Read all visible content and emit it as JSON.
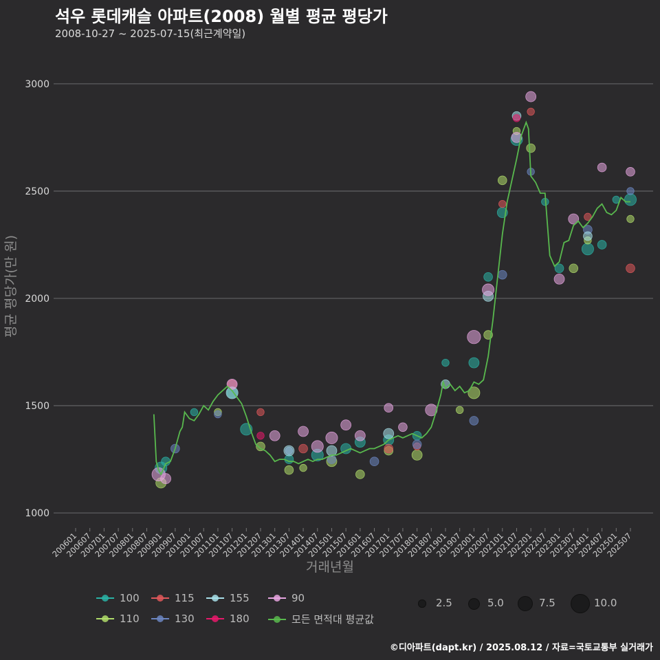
{
  "header": {
    "title": "석우 롯데캐슬 아파트(2008) 월별 평균 평당가",
    "subtitle": "2008-10-27 ~ 2025-07-15(최근계약일)"
  },
  "footer": {
    "credit": "©디아파트(dapt.kr) / 2025.08.12 / 자료=국토교통부 실거래가"
  },
  "chart_data": {
    "type": "scatter",
    "title": "석우 롯데캐슬 아파트(2008) 월별 평균 평당가",
    "xlabel": "거래년월",
    "ylabel": "평균 평당가(만 원)",
    "ylim": [
      1000,
      3100
    ],
    "yticks": [
      1000,
      1500,
      2000,
      2500,
      3000
    ],
    "xticks": [
      "200601",
      "200607",
      "200701",
      "200707",
      "200801",
      "200807",
      "200901",
      "200907",
      "201001",
      "201007",
      "201101",
      "201107",
      "201201",
      "201207",
      "201301",
      "201307",
      "201401",
      "201407",
      "201501",
      "201507",
      "201601",
      "201607",
      "201701",
      "201707",
      "201801",
      "201807",
      "201901",
      "201907",
      "202001",
      "202007",
      "202101",
      "202107",
      "202201",
      "202207",
      "202301",
      "202307",
      "202401",
      "202407",
      "202501",
      "202507"
    ],
    "grid": true,
    "legend": {
      "areas": [
        {
          "name": "100",
          "color": "#2ab3a6"
        },
        {
          "name": "115",
          "color": "#e0585b"
        },
        {
          "name": "155",
          "color": "#a8e0ea"
        },
        {
          "name": "90",
          "color": "#e7a5e1"
        },
        {
          "name": "110",
          "color": "#b0dc6a"
        },
        {
          "name": "130",
          "color": "#6c86c2"
        },
        {
          "name": "180",
          "color": "#e7196b"
        },
        {
          "name": "모든 면적대 평균값",
          "color": "#59b94e"
        }
      ],
      "sizes": [
        {
          "label": "2.5",
          "value": 2.5
        },
        {
          "label": "5.0",
          "value": 5.0
        },
        {
          "label": "7.5",
          "value": 7.5
        },
        {
          "label": "10.0",
          "value": 10.0
        }
      ]
    },
    "series": [
      {
        "name": "모든 면적대 평균값",
        "type": "line",
        "color": "#59b94e",
        "points": [
          [
            "200810",
            1460
          ],
          [
            "200811",
            1240
          ],
          [
            "200812",
            1200
          ],
          [
            "200901",
            1180
          ],
          [
            "200903",
            1230
          ],
          [
            "200905",
            1240
          ],
          [
            "200907",
            1300
          ],
          [
            "200909",
            1380
          ],
          [
            "200910",
            1400
          ],
          [
            "200911",
            1470
          ],
          [
            "201001",
            1440
          ],
          [
            "201003",
            1430
          ],
          [
            "201005",
            1460
          ],
          [
            "201007",
            1500
          ],
          [
            "201009",
            1480
          ],
          [
            "201011",
            1520
          ],
          [
            "201101",
            1550
          ],
          [
            "201103",
            1570
          ],
          [
            "201105",
            1590
          ],
          [
            "201107",
            1570
          ],
          [
            "201109",
            1540
          ],
          [
            "201111",
            1510
          ],
          [
            "201201",
            1450
          ],
          [
            "201203",
            1380
          ],
          [
            "201205",
            1320
          ],
          [
            "201207",
            1300
          ],
          [
            "201209",
            1290
          ],
          [
            "201211",
            1270
          ],
          [
            "201301",
            1240
          ],
          [
            "201303",
            1250
          ],
          [
            "201305",
            1250
          ],
          [
            "201307",
            1240
          ],
          [
            "201309",
            1240
          ],
          [
            "201311",
            1230
          ],
          [
            "201401",
            1240
          ],
          [
            "201403",
            1250
          ],
          [
            "201405",
            1240
          ],
          [
            "201407",
            1250
          ],
          [
            "201409",
            1250
          ],
          [
            "201411",
            1260
          ],
          [
            "201501",
            1270
          ],
          [
            "201503",
            1270
          ],
          [
            "201505",
            1280
          ],
          [
            "201507",
            1290
          ],
          [
            "201509",
            1300
          ],
          [
            "201511",
            1290
          ],
          [
            "201601",
            1280
          ],
          [
            "201603",
            1290
          ],
          [
            "201605",
            1300
          ],
          [
            "201607",
            1300
          ],
          [
            "201609",
            1310
          ],
          [
            "201611",
            1320
          ],
          [
            "201701",
            1340
          ],
          [
            "201703",
            1350
          ],
          [
            "201705",
            1360
          ],
          [
            "201707",
            1350
          ],
          [
            "201709",
            1360
          ],
          [
            "201711",
            1370
          ],
          [
            "201801",
            1360
          ],
          [
            "201803",
            1350
          ],
          [
            "201805",
            1370
          ],
          [
            "201807",
            1400
          ],
          [
            "201809",
            1470
          ],
          [
            "201811",
            1550
          ],
          [
            "201812",
            1610
          ],
          [
            "201901",
            1580
          ],
          [
            "201903",
            1600
          ],
          [
            "201905",
            1570
          ],
          [
            "201907",
            1590
          ],
          [
            "201909",
            1560
          ],
          [
            "201911",
            1570
          ],
          [
            "202001",
            1610
          ],
          [
            "202003",
            1600
          ],
          [
            "202005",
            1620
          ],
          [
            "202007",
            1730
          ],
          [
            "202009",
            1900
          ],
          [
            "202011",
            2100
          ],
          [
            "202101",
            2300
          ],
          [
            "202103",
            2450
          ],
          [
            "202105",
            2550
          ],
          [
            "202107",
            2650
          ],
          [
            "202109",
            2760
          ],
          [
            "202111",
            2820
          ],
          [
            "202112",
            2790
          ],
          [
            "202201",
            2570
          ],
          [
            "202203",
            2540
          ],
          [
            "202205",
            2490
          ],
          [
            "202207",
            2490
          ],
          [
            "202209",
            2200
          ],
          [
            "202211",
            2150
          ],
          [
            "202301",
            2170
          ],
          [
            "202303",
            2260
          ],
          [
            "202305",
            2270
          ],
          [
            "202307",
            2340
          ],
          [
            "202309",
            2360
          ],
          [
            "202311",
            2330
          ],
          [
            "202401",
            2350
          ],
          [
            "202403",
            2380
          ],
          [
            "202405",
            2420
          ],
          [
            "202407",
            2440
          ],
          [
            "202409",
            2400
          ],
          [
            "202411",
            2390
          ],
          [
            "202501",
            2410
          ],
          [
            "202503",
            2470
          ],
          [
            "202505",
            2450
          ],
          [
            "202507",
            2450
          ]
        ]
      },
      {
        "name": "100",
        "type": "scatter",
        "color": "#2ab3a6",
        "points": [
          [
            "200901",
            1210,
            6
          ],
          [
            "200903",
            1240,
            4
          ],
          [
            "201003",
            1470,
            3
          ],
          [
            "201107",
            1560,
            5
          ],
          [
            "201201",
            1390,
            6
          ],
          [
            "201307",
            1250,
            4
          ],
          [
            "201407",
            1270,
            6
          ],
          [
            "201507",
            1300,
            5
          ],
          [
            "201601",
            1330,
            5
          ],
          [
            "201701",
            1340,
            5
          ],
          [
            "201801",
            1360,
            4
          ],
          [
            "201901",
            1700,
            3
          ],
          [
            "202001",
            1700,
            5
          ],
          [
            "202007",
            2100,
            4
          ],
          [
            "202101",
            2400,
            5
          ],
          [
            "202107",
            2740,
            6
          ],
          [
            "202207",
            2450,
            3
          ],
          [
            "202301",
            2140,
            4
          ],
          [
            "202401",
            2230,
            6
          ],
          [
            "202407",
            2250,
            4
          ],
          [
            "202501",
            2460,
            3
          ],
          [
            "202507",
            2460,
            6
          ]
        ]
      },
      {
        "name": "110",
        "type": "scatter",
        "color": "#b0dc6a",
        "points": [
          [
            "200901",
            1140,
            5
          ],
          [
            "201101",
            1470,
            3
          ],
          [
            "201207",
            1310,
            4
          ],
          [
            "201307",
            1200,
            4
          ],
          [
            "201401",
            1210,
            3
          ],
          [
            "201501",
            1240,
            5
          ],
          [
            "201601",
            1180,
            4
          ],
          [
            "201701",
            1290,
            4
          ],
          [
            "201801",
            1270,
            5
          ],
          [
            "201907",
            1480,
            3
          ],
          [
            "202001",
            1560,
            6
          ],
          [
            "202007",
            1830,
            4
          ],
          [
            "202101",
            2550,
            4
          ],
          [
            "202107",
            2780,
            3
          ],
          [
            "202201",
            2700,
            4
          ],
          [
            "202307",
            2140,
            4
          ],
          [
            "202401",
            2270,
            3
          ],
          [
            "202507",
            2370,
            3
          ]
        ]
      },
      {
        "name": "115",
        "type": "scatter",
        "color": "#e0585b",
        "points": [
          [
            "201107",
            1600,
            4
          ],
          [
            "201207",
            1470,
            3
          ],
          [
            "201401",
            1300,
            4
          ],
          [
            "201701",
            1300,
            4
          ],
          [
            "201801",
            1310,
            3
          ],
          [
            "202101",
            2440,
            3
          ],
          [
            "202201",
            2870,
            3
          ],
          [
            "202401",
            2380,
            3
          ],
          [
            "202507",
            2140,
            4
          ]
        ]
      },
      {
        "name": "130",
        "type": "scatter",
        "color": "#6c86c2",
        "points": [
          [
            "200907",
            1300,
            4
          ],
          [
            "201101",
            1460,
            3
          ],
          [
            "201307",
            1290,
            3
          ],
          [
            "201501",
            1250,
            4
          ],
          [
            "201607",
            1240,
            4
          ],
          [
            "201801",
            1320,
            4
          ],
          [
            "202001",
            1430,
            4
          ],
          [
            "202101",
            2110,
            4
          ],
          [
            "202201",
            2590,
            3
          ],
          [
            "202401",
            2320,
            4
          ],
          [
            "202507",
            2500,
            3
          ]
        ]
      },
      {
        "name": "155",
        "type": "scatter",
        "color": "#a8e0ea",
        "points": [
          [
            "201107",
            1560,
            6
          ],
          [
            "201307",
            1290,
            5
          ],
          [
            "201501",
            1290,
            5
          ],
          [
            "201701",
            1370,
            5
          ],
          [
            "201901",
            1600,
            4
          ],
          [
            "202007",
            2010,
            5
          ],
          [
            "202107",
            2850,
            4
          ],
          [
            "202401",
            2290,
            4
          ]
        ]
      },
      {
        "name": "180",
        "type": "scatter",
        "color": "#e7196b",
        "points": [
          [
            "201207",
            1360,
            3
          ],
          [
            "202107",
            2840,
            3
          ]
        ]
      },
      {
        "name": "90",
        "type": "scatter",
        "color": "#e7a5e1",
        "points": [
          [
            "200812",
            1180,
            7
          ],
          [
            "200903",
            1160,
            5
          ],
          [
            "201107",
            1600,
            5
          ],
          [
            "201301",
            1360,
            5
          ],
          [
            "201401",
            1380,
            5
          ],
          [
            "201407",
            1310,
            6
          ],
          [
            "201501",
            1350,
            6
          ],
          [
            "201507",
            1410,
            5
          ],
          [
            "201601",
            1360,
            5
          ],
          [
            "201701",
            1490,
            4
          ],
          [
            "201707",
            1400,
            4
          ],
          [
            "201807",
            1480,
            6
          ],
          [
            "202001",
            1820,
            7
          ],
          [
            "202007",
            2040,
            6
          ],
          [
            "202107",
            2750,
            5
          ],
          [
            "202201",
            2940,
            5
          ],
          [
            "202301",
            2090,
            5
          ],
          [
            "202307",
            2370,
            5
          ],
          [
            "202407",
            2610,
            4
          ],
          [
            "202507",
            2590,
            4
          ]
        ]
      }
    ]
  }
}
